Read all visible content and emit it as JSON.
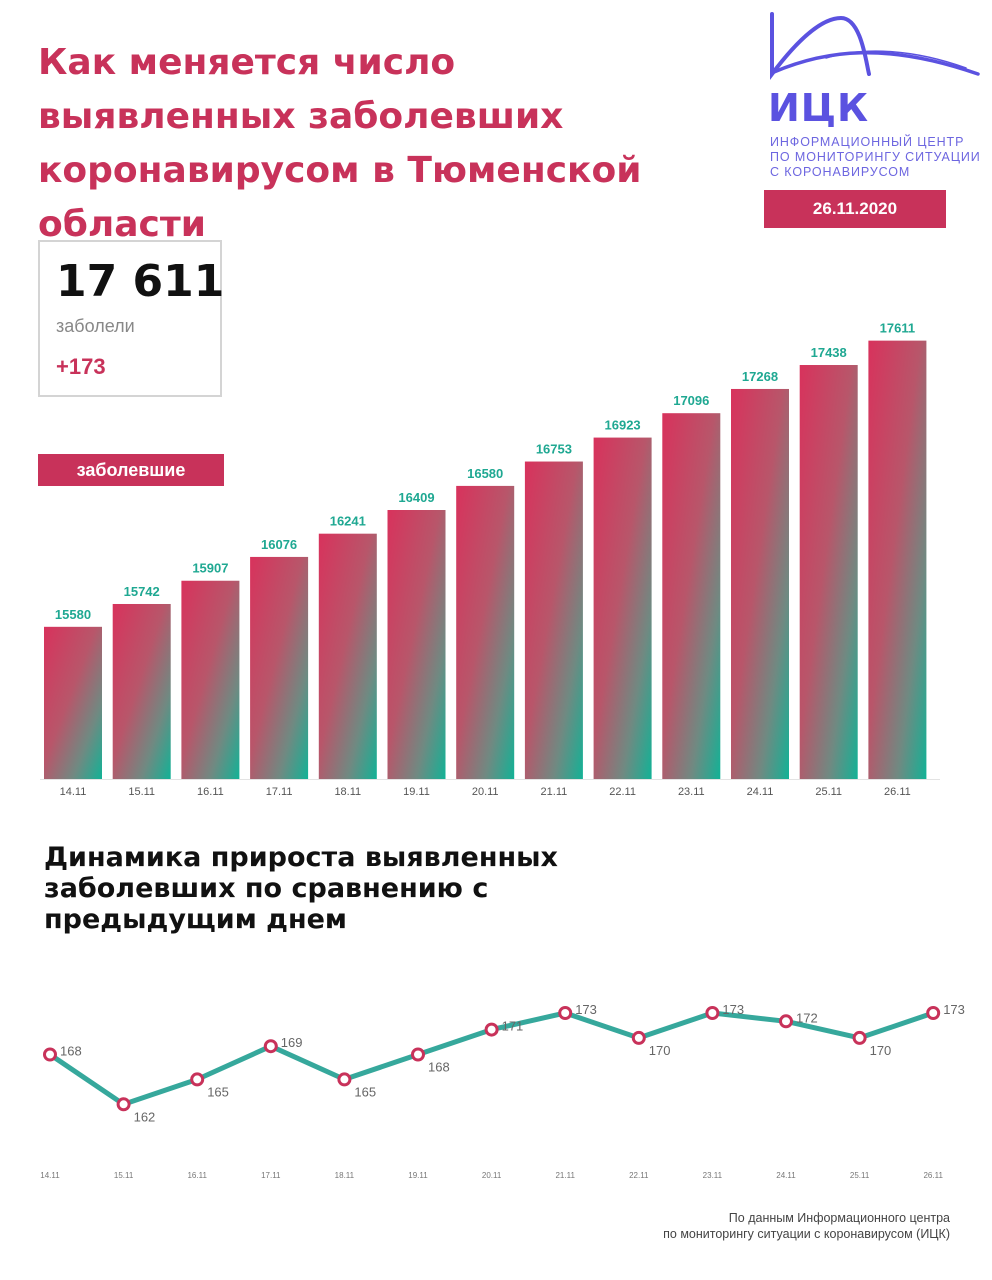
{
  "title_lines": [
    "Как меняется число",
    "выявленных заболевших",
    "коронавирусом в Тюменской",
    "области"
  ],
  "logo": {
    "abbr": "ИЦК",
    "sub_lines": [
      "ИНФОРМАЦИОННЫЙ ЦЕНТР",
      "ПО МОНИТОРИНГУ СИТУАЦИИ",
      "С КОРОНАВИРУСОМ"
    ],
    "color": "#5b52e0"
  },
  "date": "26.11.2020",
  "total": {
    "value": "17 611",
    "label": "заболели",
    "delta": "+173"
  },
  "legend_label": "заболевшие",
  "colors": {
    "accent": "#c8325a",
    "teal": "#1fa892",
    "line": "#36a89c"
  },
  "chart_data": [
    {
      "type": "bar",
      "categories": [
        "14.11",
        "15.11",
        "16.11",
        "17.11",
        "18.11",
        "19.11",
        "20.11",
        "21.11",
        "22.11",
        "23.11",
        "24.11",
        "25.11",
        "26.11"
      ],
      "series": [
        {
          "name": "заболевшие",
          "values": [
            15580,
            15742,
            15907,
            16076,
            16241,
            16409,
            16580,
            16753,
            16923,
            17096,
            17268,
            17438,
            17611
          ]
        }
      ],
      "ylim": [
        14500,
        17800
      ],
      "grid": false,
      "legend": "top-left"
    },
    {
      "type": "line",
      "title": "Динамика прироста выявленных заболевших по сравнению с предыдущим днем",
      "title_lines": [
        "Динамика прироста выявленных",
        "заболевших по сравнению с",
        "предыдущим днем"
      ],
      "categories": [
        "14.11",
        "15.11",
        "16.11",
        "17.11",
        "18.11",
        "19.11",
        "20.11",
        "21.11",
        "22.11",
        "23.11",
        "24.11",
        "25.11",
        "26.11"
      ],
      "values": [
        168,
        162,
        165,
        169,
        165,
        168,
        171,
        173,
        170,
        173,
        172,
        170,
        173
      ],
      "ylim": [
        160,
        175
      ],
      "grid": false
    }
  ],
  "source_lines": [
    "По данным Информационного центра",
    "по мониторингу ситуации с коронавирусом (ИЦК)"
  ]
}
